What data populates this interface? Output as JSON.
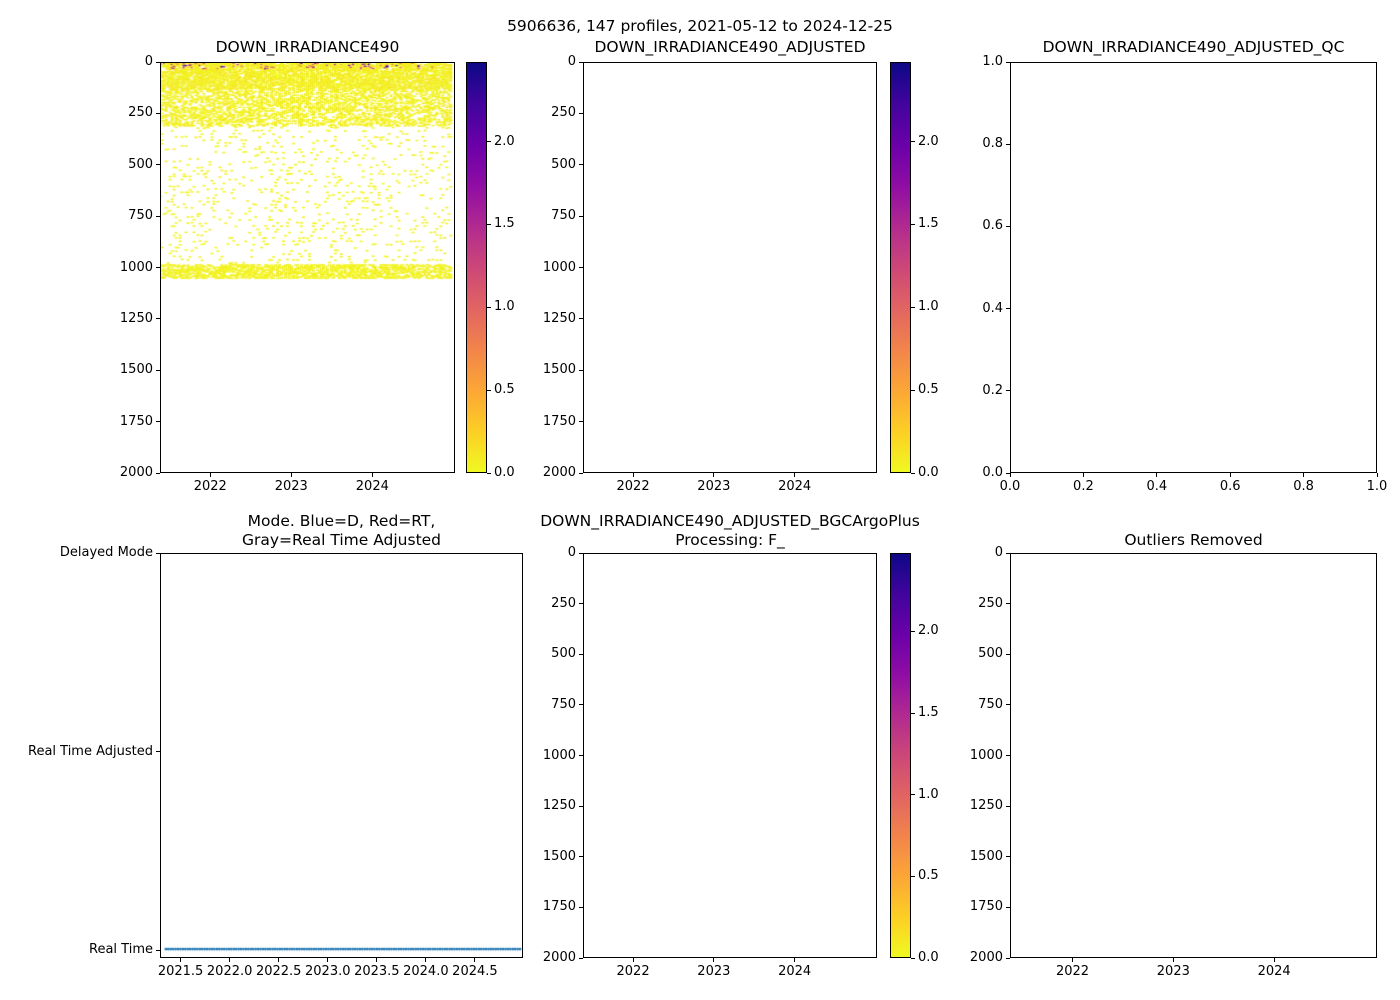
{
  "figure": {
    "suptitle": "5906636, 147 profiles, 2021-05-12 to 2024-12-25",
    "float_id": "5906636",
    "n_profiles": 147,
    "date_range": [
      "2021-05-12",
      "2024-12-25"
    ],
    "background": "#ffffff",
    "colormap_plasma": [
      "#0d0887",
      "#41049d",
      "#6a00a8",
      "#8f0da4",
      "#b12a90",
      "#cc4778",
      "#e16462",
      "#f2844b",
      "#fca636",
      "#fcce25",
      "#f0f921"
    ]
  },
  "chart_data": [
    {
      "type": "scatter",
      "title": "DOWN_IRRADIANCE490",
      "xlabel": "",
      "ylabel": "",
      "xlim": [
        2021.38,
        2025.02
      ],
      "ylim": [
        0,
        2000
      ],
      "invert_y": true,
      "xtick_values": [
        2022,
        2023,
        2024
      ],
      "xtick_labels": [
        "2022",
        "2023",
        "2024"
      ],
      "ytick_values": [
        0,
        250,
        500,
        750,
        1000,
        1250,
        1500,
        1750,
        2000
      ],
      "ytick_labels": [
        "0",
        "250",
        "500",
        "750",
        "1000",
        "1250",
        "1500",
        "1750",
        "2000"
      ],
      "colorbar": {
        "vmin": 0,
        "vmax": 2.48,
        "tick_values": [
          0,
          0.5,
          1.0,
          1.5,
          2.0
        ],
        "tick_labels": [
          "0.0",
          "0.5",
          "1.0",
          "1.5",
          "2.0"
        ],
        "colormap": "plasma_r"
      },
      "scatter": {
        "n_profiles": 147,
        "time_range": [
          2021.37,
          2024.98
        ],
        "depth_extent": [
          0,
          1055
        ],
        "typical_value_near_zero": true,
        "bands": [
          {
            "depth_range": [
              0,
              130
            ],
            "n_levels": 26,
            "keep_prob": 0.68,
            "value_range": [
              0,
              0.12
            ]
          },
          {
            "depth_range": [
              130,
              310
            ],
            "n_levels": 30,
            "keep_prob": 0.45,
            "value_range": [
              0,
              0.1
            ]
          },
          {
            "depth_range": [
              310,
              985
            ],
            "n_levels": 45,
            "keep_prob": 0.12,
            "value_range": [
              0,
              0.08
            ]
          },
          {
            "depth_range": [
              985,
              1055
            ],
            "n_levels": 12,
            "keep_prob": 0.62,
            "value_range": [
              0,
              0.08
            ]
          }
        ],
        "surface_outliers": {
          "depth_max": 30,
          "fraction": 0.1,
          "early_time_boost_before": 2021.8,
          "boost_fraction": 0.32,
          "value_range": [
            0.75,
            2.48
          ]
        }
      }
    },
    {
      "type": "scatter",
      "title": "DOWN_IRRADIANCE490_ADJUSTED",
      "xlabel": "",
      "ylabel": "",
      "xlim": [
        2021.38,
        2025.02
      ],
      "ylim": [
        0,
        2000
      ],
      "invert_y": true,
      "xtick_values": [
        2022,
        2023,
        2024
      ],
      "xtick_labels": [
        "2022",
        "2023",
        "2024"
      ],
      "ytick_values": [
        0,
        250,
        500,
        750,
        1000,
        1250,
        1500,
        1750,
        2000
      ],
      "ytick_labels": [
        "0",
        "250",
        "500",
        "750",
        "1000",
        "1250",
        "1500",
        "1750",
        "2000"
      ],
      "colorbar": {
        "vmin": 0,
        "vmax": 2.48,
        "tick_values": [
          0,
          0.5,
          1.0,
          1.5,
          2.0
        ],
        "tick_labels": [
          "0.0",
          "0.5",
          "1.0",
          "1.5",
          "2.0"
        ],
        "colormap": "plasma_r"
      },
      "empty": true
    },
    {
      "type": "scatter",
      "title": "DOWN_IRRADIANCE490_ADJUSTED_QC",
      "xlabel": "",
      "ylabel": "",
      "xlim": [
        0,
        1
      ],
      "ylim": [
        0,
        1
      ],
      "invert_y": false,
      "xtick_values": [
        0,
        0.2,
        0.4,
        0.6,
        0.8,
        1.0
      ],
      "xtick_labels": [
        "0.0",
        "0.2",
        "0.4",
        "0.6",
        "0.8",
        "1.0"
      ],
      "ytick_values": [
        0,
        0.2,
        0.4,
        0.6,
        0.8,
        1.0
      ],
      "ytick_labels": [
        "0.0",
        "0.2",
        "0.4",
        "0.6",
        "0.8",
        "1.0"
      ],
      "empty": true
    },
    {
      "type": "scatter",
      "title": "Mode. Blue=D, Red=RT,\nGray=Real Time Adjusted",
      "title_lines": [
        "Mode. Blue=D, Red=RT,",
        "Gray=Real Time Adjusted"
      ],
      "xlabel": "",
      "ylabel": "",
      "xlim": [
        2021.29,
        2024.99
      ],
      "ylim": [
        -0.04,
        2.0
      ],
      "invert_y": false,
      "xtick_values": [
        2021.5,
        2022.0,
        2022.5,
        2023.0,
        2023.5,
        2024.0,
        2024.5
      ],
      "xtick_labels": [
        "2021.5",
        "2022.0",
        "2022.5",
        "2023.0",
        "2023.5",
        "2024.0",
        "2024.5"
      ],
      "ytick_values": [
        2,
        1,
        0
      ],
      "ytick_labels": [
        "Delayed Mode",
        "Real Time Adjusted",
        "Real Time"
      ],
      "legend_note": "Blue=D, Red=RT, Gray=Real Time Adjusted",
      "mode_series": {
        "name": "mode",
        "y_category": "Real Time",
        "y_value": 0,
        "color": "#1f77b4",
        "n_points": 147,
        "time_range": [
          2021.34,
          2024.97
        ]
      }
    },
    {
      "type": "scatter",
      "title": "DOWN_IRRADIANCE490_ADJUSTED_BGCArgoPlus\nProcessing: F_",
      "title_lines": [
        "DOWN_IRRADIANCE490_ADJUSTED_BGCArgoPlus",
        "Processing: F_"
      ],
      "xlabel": "",
      "ylabel": "",
      "xlim": [
        2021.38,
        2025.02
      ],
      "ylim": [
        0,
        2000
      ],
      "invert_y": true,
      "xtick_values": [
        2022,
        2023,
        2024
      ],
      "xtick_labels": [
        "2022",
        "2023",
        "2024"
      ],
      "ytick_values": [
        0,
        250,
        500,
        750,
        1000,
        1250,
        1500,
        1750,
        2000
      ],
      "ytick_labels": [
        "0",
        "250",
        "500",
        "750",
        "1000",
        "1250",
        "1500",
        "1750",
        "2000"
      ],
      "colorbar": {
        "vmin": 0,
        "vmax": 2.48,
        "tick_values": [
          0,
          0.5,
          1.0,
          1.5,
          2.0
        ],
        "tick_labels": [
          "0.0",
          "0.5",
          "1.0",
          "1.5",
          "2.0"
        ],
        "colormap": "plasma_r"
      },
      "empty": true
    },
    {
      "type": "scatter",
      "title": "Outliers Removed",
      "xlabel": "",
      "ylabel": "",
      "xlim": [
        2021.38,
        2025.02
      ],
      "ylim": [
        0,
        2000
      ],
      "invert_y": true,
      "xtick_values": [
        2022,
        2023,
        2024
      ],
      "xtick_labels": [
        "2022",
        "2023",
        "2024"
      ],
      "ytick_values": [
        0,
        250,
        500,
        750,
        1000,
        1250,
        1500,
        1750,
        2000
      ],
      "ytick_labels": [
        "0",
        "250",
        "500",
        "750",
        "1000",
        "1250",
        "1500",
        "1750",
        "2000"
      ],
      "empty": true
    }
  ]
}
